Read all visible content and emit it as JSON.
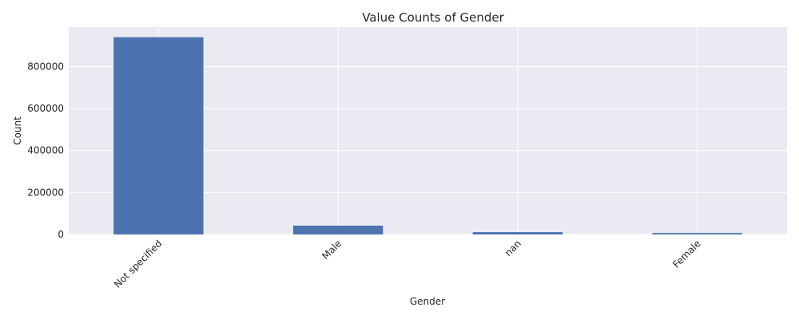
{
  "chart_data": {
    "type": "bar",
    "title": "Value Counts of Gender",
    "xlabel": "Gender",
    "ylabel": "Count",
    "categories": [
      "Not specified",
      "Male",
      "nan",
      "Female"
    ],
    "values": [
      940000,
      42000,
      11000,
      7000
    ],
    "ylim": [
      0,
      988000
    ],
    "yticks": [
      0,
      200000,
      400000,
      600000,
      800000
    ],
    "ytick_labels": [
      "0",
      "200000",
      "400000",
      "600000",
      "800000"
    ],
    "grid": true,
    "bar_color": "#4c72b0",
    "background_color": "#eaeaf2"
  }
}
